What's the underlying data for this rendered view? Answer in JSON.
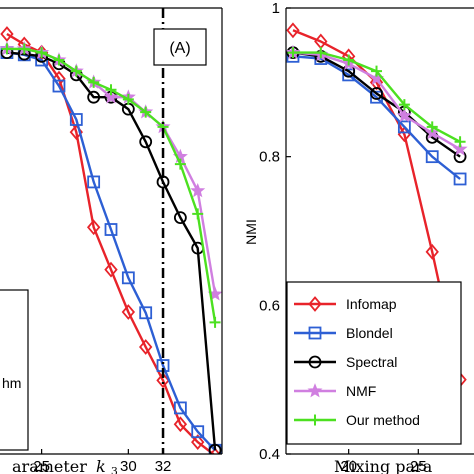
{
  "chart_data": [
    {
      "type": "line",
      "panel_label": "(A)",
      "xlabel_visible": "arameter",
      "xlabel_math": "k",
      "xlabel_subscript": "3",
      "xlim": [
        22.6,
        35.4
      ],
      "ylim": [
        0.4,
        1.0
      ],
      "xticks": [
        {
          "value": 25,
          "label": "25"
        },
        {
          "value": 30,
          "label": "30"
        },
        {
          "value": 32,
          "label": "32"
        }
      ],
      "vline": 32,
      "partial_legend_text": "hm",
      "series": [
        {
          "name": "Infomap",
          "color": "#e8232a",
          "marker": "diamond",
          "x": [
            23,
            24,
            25,
            26,
            27,
            28,
            29,
            30,
            31,
            32,
            33,
            34,
            35
          ],
          "y": [
            0.965,
            0.951,
            0.94,
            0.905,
            0.833,
            0.705,
            0.648,
            0.591,
            0.544,
            0.499,
            0.44,
            0.416,
            0.398
          ]
        },
        {
          "name": "Blondel",
          "color": "#2d5fd4",
          "marker": "square",
          "x": [
            23,
            24,
            25,
            26,
            27,
            28,
            29,
            30,
            31,
            32,
            33,
            34,
            35
          ],
          "y": [
            0.94,
            0.937,
            0.93,
            0.895,
            0.85,
            0.766,
            0.702,
            0.637,
            0.59,
            0.519,
            0.462,
            0.43,
            0.405
          ]
        },
        {
          "name": "Spectral",
          "color": "#000000",
          "marker": "circle",
          "x": [
            23,
            24,
            25,
            26,
            27,
            28,
            29,
            30,
            31,
            32,
            33,
            34,
            35
          ],
          "y": [
            0.94,
            0.938,
            0.935,
            0.925,
            0.91,
            0.88,
            0.88,
            0.864,
            0.82,
            0.766,
            0.718,
            0.677,
            0.405
          ]
        },
        {
          "name": "NMF",
          "color": "#d07fe0",
          "marker": "star",
          "x": [
            23,
            24,
            25,
            26,
            27,
            28,
            29,
            30,
            31,
            32,
            33,
            34,
            35
          ],
          "y": [
            0.945,
            0.945,
            0.94,
            0.93,
            0.915,
            0.9,
            0.88,
            0.88,
            0.86,
            0.84,
            0.8,
            0.754,
            0.615
          ]
        },
        {
          "name": "Our method",
          "color": "#4ce020",
          "marker": "plus",
          "x": [
            23,
            24,
            25,
            26,
            27,
            28,
            29,
            30,
            31,
            32,
            33,
            34,
            35
          ],
          "y": [
            0.945,
            0.945,
            0.94,
            0.93,
            0.915,
            0.9,
            0.89,
            0.877,
            0.86,
            0.84,
            0.79,
            0.723,
            0.577
          ]
        }
      ]
    },
    {
      "type": "line",
      "ylabel": "NMI",
      "xlabel_visible": "Mixing para",
      "xlim": [
        15.5,
        29
      ],
      "ylim": [
        0.4,
        1.0
      ],
      "xticks": [
        {
          "value": 20,
          "label": "20"
        },
        {
          "value": 25,
          "label": "25"
        }
      ],
      "yticks": [
        {
          "value": 0.4,
          "label": "0.4"
        },
        {
          "value": 0.6,
          "label": "0.6"
        },
        {
          "value": 0.8,
          "label": "0.8"
        },
        {
          "value": 1.0,
          "label": "1"
        }
      ],
      "legend_position": "bottom-left",
      "series": [
        {
          "name": "Infomap",
          "color": "#e8232a",
          "marker": "diamond",
          "x": [
            16,
            18,
            20,
            22,
            24,
            26,
            28
          ],
          "y": [
            0.97,
            0.955,
            0.935,
            0.9,
            0.83,
            0.672,
            0.5
          ]
        },
        {
          "name": "Blondel",
          "color": "#2d5fd4",
          "marker": "square",
          "x": [
            16,
            18,
            20,
            22,
            24,
            26,
            28
          ],
          "y": [
            0.935,
            0.932,
            0.91,
            0.88,
            0.84,
            0.8,
            0.77
          ]
        },
        {
          "name": "Spectral",
          "color": "#000000",
          "marker": "circle",
          "x": [
            16,
            18,
            20,
            22,
            24,
            26,
            28
          ],
          "y": [
            0.94,
            0.935,
            0.915,
            0.885,
            0.86,
            0.826,
            0.8
          ]
        },
        {
          "name": "NMF",
          "color": "#d07fe0",
          "marker": "star",
          "x": [
            16,
            18,
            20,
            22,
            24,
            26,
            28
          ],
          "y": [
            0.94,
            0.937,
            0.925,
            0.905,
            0.855,
            0.832,
            0.81
          ]
        },
        {
          "name": "Our method",
          "color": "#4ce020",
          "marker": "plus",
          "x": [
            16,
            18,
            20,
            22,
            24,
            26,
            28
          ],
          "y": [
            0.94,
            0.94,
            0.93,
            0.915,
            0.87,
            0.84,
            0.82
          ]
        }
      ]
    }
  ]
}
